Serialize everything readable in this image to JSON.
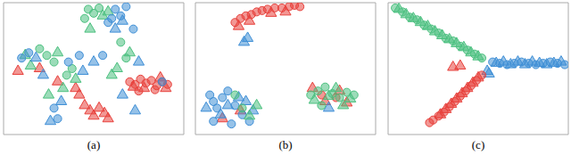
{
  "chart_data": [
    {
      "type": "scatter",
      "title": "(a)",
      "xlim": [
        0,
        100
      ],
      "ylim": [
        0,
        100
      ],
      "tick_labels": false,
      "series": [
        {
          "color": "#e8413c",
          "marker": "circle",
          "x": [
            70,
            73,
            76,
            79,
            82,
            85,
            88,
            91,
            75,
            84
          ],
          "values": [
            40,
            38,
            42,
            39,
            41,
            37,
            40,
            38,
            33,
            34
          ]
        },
        {
          "color": "#e8413c",
          "marker": "triangle",
          "x": [
            72,
            78,
            87,
            90,
            45,
            48,
            50,
            53,
            56,
            42,
            40,
            58,
            30,
            8,
            20
          ],
          "values": [
            36,
            35,
            43,
            35,
            22,
            18,
            14,
            20,
            16,
            30,
            35,
            12,
            40,
            48,
            50
          ]
        },
        {
          "color": "#4bc07f",
          "marker": "circle",
          "x": [
            47,
            50,
            53,
            45,
            20,
            24,
            28,
            35,
            38,
            65,
            68
          ],
          "values": [
            95,
            92,
            96,
            88,
            65,
            60,
            55,
            45,
            50,
            70,
            58
          ]
        },
        {
          "color": "#4bc07f",
          "marker": "triangle",
          "x": [
            55,
            58,
            48,
            30,
            33,
            60,
            63,
            25,
            40,
            12,
            15,
            70
          ],
          "values": [
            90,
            93,
            80,
            62,
            35,
            45,
            50,
            30,
            42,
            60,
            52,
            62
          ]
        },
        {
          "color": "#3f8fd6",
          "marker": "circle",
          "x": [
            62,
            65,
            68,
            58,
            10,
            14,
            36,
            42,
            55,
            28,
            30,
            60,
            72,
            88
          ],
          "values": [
            95,
            90,
            97,
            85,
            58,
            62,
            55,
            60,
            60,
            20,
            12,
            88,
            80,
            40
          ]
        },
        {
          "color": "#3f8fd6",
          "marker": "triangle",
          "x": [
            66,
            62,
            18,
            22,
            44,
            50,
            32,
            26,
            66,
            73,
            75
          ],
          "values": [
            86,
            80,
            58,
            45,
            48,
            55,
            25,
            10,
            30,
            18,
            55
          ]
        }
      ]
    },
    {
      "type": "scatter",
      "title": "(b)",
      "xlim": [
        0,
        100
      ],
      "ylim": [
        0,
        100
      ],
      "tick_labels": false,
      "series": [
        {
          "color": "#e8413c",
          "marker": "circle",
          "x": [
            22,
            25,
            28,
            31,
            34,
            37,
            40,
            44,
            48,
            52,
            55,
            58,
            70,
            78
          ],
          "values": [
            85,
            88,
            90,
            91,
            93,
            94,
            95,
            96,
            96,
            97,
            98,
            97,
            30,
            28
          ]
        },
        {
          "color": "#e8413c",
          "marker": "triangle",
          "x": [
            24,
            30,
            42,
            50,
            65,
            72,
            80,
            84,
            15,
            25
          ],
          "values": [
            82,
            86,
            92,
            93,
            35,
            25,
            33,
            24,
            12,
            18
          ]
        },
        {
          "color": "#3f8fd6",
          "marker": "circle",
          "x": [
            8,
            10,
            12,
            15,
            18,
            22,
            26,
            30,
            10,
            20
          ],
          "values": [
            30,
            25,
            20,
            28,
            33,
            22,
            15,
            10,
            10,
            8
          ]
        },
        {
          "color": "#3f8fd6",
          "marker": "triangle",
          "x": [
            6,
            14,
            24,
            28,
            32,
            18,
            27,
            29,
            74
          ],
          "values": [
            20,
            15,
            28,
            25,
            18,
            22,
            70,
            73,
            20
          ]
        },
        {
          "color": "#4bc07f",
          "marker": "circle",
          "x": [
            64,
            68,
            72,
            76,
            80,
            84,
            88,
            70,
            22,
            26
          ],
          "values": [
            30,
            33,
            36,
            31,
            28,
            32,
            30,
            22,
            30,
            20
          ]
        },
        {
          "color": "#4bc07f",
          "marker": "triangle",
          "x": [
            66,
            74,
            78,
            82,
            86,
            30,
            34
          ],
          "values": [
            26,
            29,
            35,
            22,
            27,
            14,
            22
          ]
        }
      ]
    },
    {
      "type": "scatter",
      "title": "(c)",
      "xlim": [
        0,
        100
      ],
      "ylim": [
        0,
        100
      ],
      "tick_labels": false,
      "series": [
        {
          "color": "#4bc07f",
          "marker": "circle",
          "x": [
            4,
            8,
            12,
            16,
            20,
            24,
            28,
            32,
            36,
            40,
            44,
            48,
            52
          ],
          "values": [
            96,
            93,
            89,
            87,
            83,
            80,
            77,
            73,
            71,
            67,
            64,
            61,
            58
          ]
        },
        {
          "color": "#4bc07f",
          "marker": "triangle",
          "x": [
            6,
            10,
            14,
            18,
            22,
            26,
            30,
            34,
            38,
            42,
            46,
            50
          ],
          "values": [
            95,
            91,
            88,
            85,
            82,
            78,
            75,
            72,
            69,
            66,
            62,
            59
          ]
        },
        {
          "color": "#3f8fd6",
          "marker": "circle",
          "x": [
            58,
            62,
            66,
            70,
            74,
            78,
            82,
            86,
            90,
            94,
            98
          ],
          "values": [
            55,
            54,
            53,
            54,
            55,
            54,
            53,
            54,
            55,
            54,
            53
          ]
        },
        {
          "color": "#3f8fd6",
          "marker": "triangle",
          "x": [
            60,
            64,
            68,
            72,
            76,
            80,
            84,
            88,
            92,
            96,
            55,
            56
          ],
          "values": [
            54,
            55,
            53,
            55,
            53,
            55,
            54,
            53,
            54,
            55,
            48,
            46
          ]
        },
        {
          "color": "#e8413c",
          "marker": "circle",
          "x": [
            52,
            49,
            46,
            43,
            40,
            37,
            34,
            31,
            28,
            25,
            23
          ],
          "values": [
            45,
            41,
            37,
            33,
            29,
            25,
            21,
            17,
            14,
            11,
            9
          ]
        },
        {
          "color": "#e8413c",
          "marker": "triangle",
          "x": [
            50,
            47,
            44,
            41,
            38,
            35,
            32,
            29,
            36,
            40
          ],
          "values": [
            43,
            39,
            35,
            31,
            27,
            23,
            19,
            15,
            51,
            52
          ]
        }
      ]
    }
  ]
}
